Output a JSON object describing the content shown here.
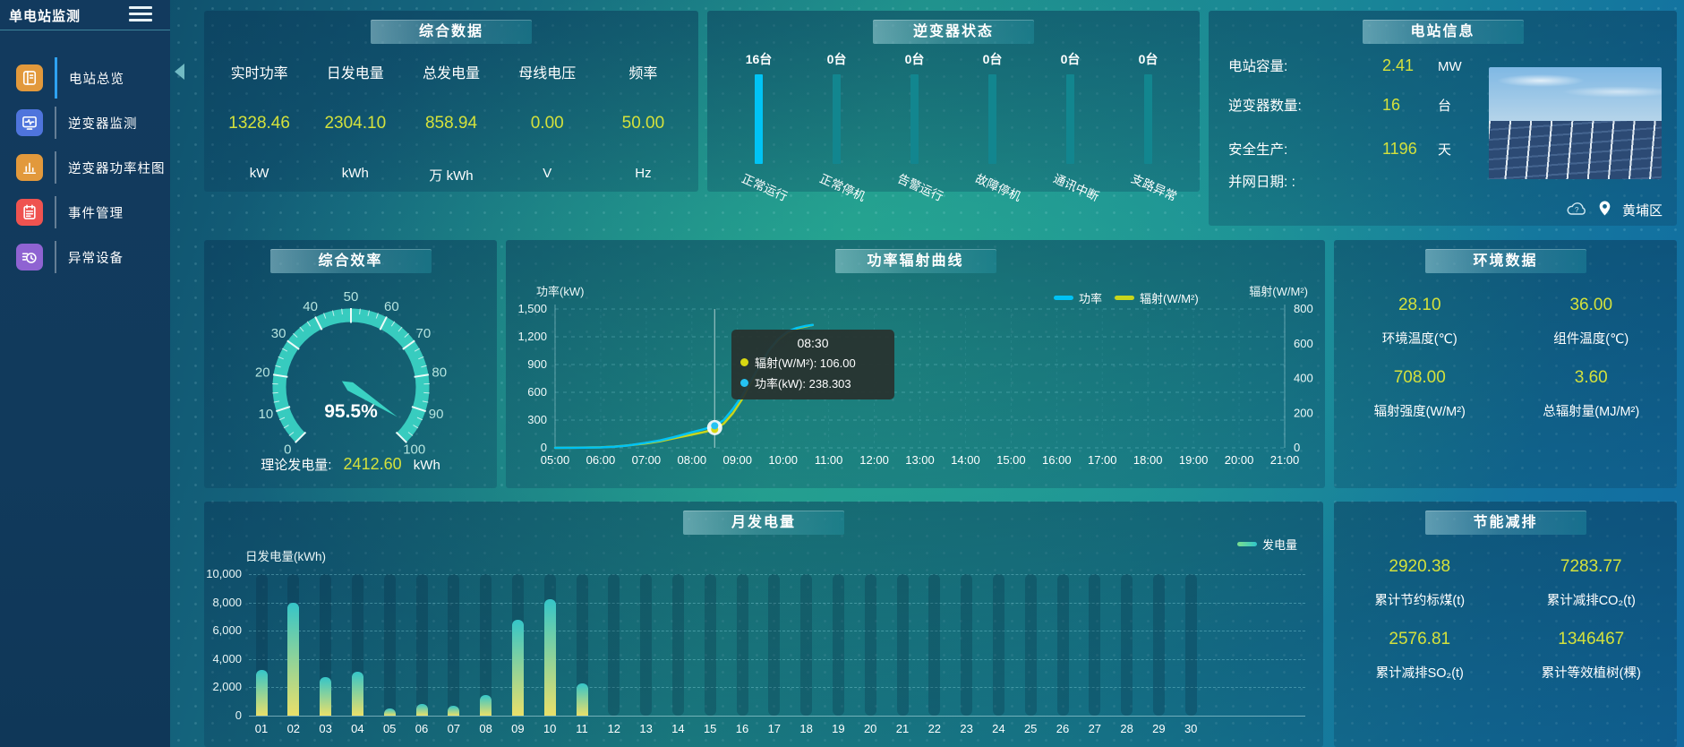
{
  "app": {
    "title": "单电站监测"
  },
  "sidebar": {
    "items": [
      {
        "key": "overview",
        "label": "电站总览",
        "icon": "station-overview-icon",
        "color": "#e2993c",
        "active": true
      },
      {
        "key": "inverter-monitor",
        "label": "逆变器监测",
        "icon": "inverter-monitor-icon",
        "color": "#4f74dc",
        "active": false
      },
      {
        "key": "inverter-power-chart",
        "label": "逆变器功率柱图",
        "icon": "inverter-power-bar-icon",
        "color": "#e2993c",
        "active": false
      },
      {
        "key": "event-management",
        "label": "事件管理",
        "icon": "event-management-icon",
        "color": "#ef5350",
        "active": false
      },
      {
        "key": "abnormal-device",
        "label": "异常设备",
        "icon": "abnormal-device-icon",
        "color": "#8f63d2",
        "active": false
      }
    ]
  },
  "panels": {
    "summary": {
      "title": "综合数据",
      "metrics": [
        {
          "label": "实时功率",
          "value": "1328.46",
          "unit": "kW"
        },
        {
          "label": "日发电量",
          "value": "2304.10",
          "unit": "kWh"
        },
        {
          "label": "总发电量",
          "value": "858.94",
          "unit": "万 kWh"
        },
        {
          "label": "母线电压",
          "value": "0.00",
          "unit": "V"
        },
        {
          "label": "频率",
          "value": "50.00",
          "unit": "Hz"
        }
      ]
    },
    "inverter_status": {
      "title": "逆变器状态"
    },
    "station_info": {
      "title": "电站信息",
      "rows": [
        {
          "label": "电站容量:",
          "value": "2.41",
          "unit": "MW"
        },
        {
          "label": "逆变器数量:",
          "value": "16",
          "unit": "台"
        },
        {
          "label": "安全生产:",
          "value": "1196",
          "unit": "天"
        },
        {
          "label": "并网日期: :",
          "value": "",
          "unit": ""
        }
      ],
      "location": "黄埔区"
    },
    "efficiency": {
      "title": "综合效率",
      "theory_label": "理论发电量:",
      "theory_value": "2412.60",
      "theory_unit": "kWh"
    },
    "power_curve": {
      "title": "功率辐射曲线"
    },
    "environment": {
      "title": "环境数据",
      "metrics": [
        {
          "value": "28.10",
          "label": "环境温度(℃)"
        },
        {
          "value": "36.00",
          "label": "组件温度(℃)"
        },
        {
          "value": "708.00",
          "label": "辐射强度(W/M²)"
        },
        {
          "value": "3.60",
          "label": "总辐射量(MJ/M²)"
        }
      ]
    },
    "monthly": {
      "title": "月发电量"
    },
    "saving": {
      "title": "节能减排",
      "metrics": [
        {
          "value": "2920.38",
          "label": "累计节约标煤(t)"
        },
        {
          "value": "7283.77",
          "label": "累计减排CO₂(t)"
        },
        {
          "value": "2576.81",
          "label": "累计减排SO₂(t)"
        },
        {
          "value": "1346467",
          "label": "累计等效植树(棵)"
        }
      ]
    }
  },
  "chart_data": [
    {
      "id": "inverter_status",
      "type": "bar",
      "title": "逆变器状态",
      "categories": [
        "正常运行",
        "正常停机",
        "告警运行",
        "故障停机",
        "通讯中断",
        "支路异常"
      ],
      "values": [
        16,
        0,
        0,
        0,
        0,
        0
      ],
      "value_labels": [
        "16台",
        "0台",
        "0台",
        "0台",
        "0台",
        "0台"
      ],
      "highlight_color": "#00c4f5",
      "bar_color": "#12868f"
    },
    {
      "id": "efficiency_gauge",
      "type": "gauge",
      "title": "综合效率",
      "value": 95.5,
      "label": "95.5%",
      "min": 0,
      "max": 100,
      "tick_labels": [
        "0",
        "10",
        "20",
        "30",
        "40",
        "50",
        "60",
        "70",
        "80",
        "90",
        "100"
      ],
      "color": "#3ad2c3"
    },
    {
      "id": "power_radiation",
      "type": "line",
      "title": "功率辐射曲线",
      "x_ticks": [
        "05:00",
        "06:00",
        "07:00",
        "08:00",
        "09:00",
        "10:00",
        "11:00",
        "12:00",
        "13:00",
        "14:00",
        "15:00",
        "16:00",
        "17:00",
        "18:00",
        "19:00",
        "20:00",
        "21:00"
      ],
      "axis_left_name": "功率(kW)",
      "axis_right_name": "辐射(W/M²)",
      "yticks_left": [
        "1,500",
        "1,200",
        "900",
        "600",
        "300",
        "0"
      ],
      "yticks_right": [
        "800",
        "600",
        "400",
        "200",
        "0"
      ],
      "ylim_left": [
        0,
        1500
      ],
      "ylim_right": [
        0,
        800
      ],
      "legend": [
        {
          "name": "功率",
          "color": "#00c2f4"
        },
        {
          "name": "辐射(W/M²)",
          "color": "#c8d61c"
        }
      ],
      "series": [
        {
          "name": "辐射(W/M²)",
          "axis": "right",
          "color": "#c8d61c",
          "points": [
            [
              5,
              0
            ],
            [
              5.5,
              1
            ],
            [
              6,
              3
            ],
            [
              6.3,
              7
            ],
            [
              6.6,
              14
            ],
            [
              7,
              26
            ],
            [
              7.3,
              38
            ],
            [
              7.6,
              55
            ],
            [
              8,
              76
            ],
            [
              8.25,
              90
            ],
            [
              8.5,
              106
            ],
            [
              8.7,
              140
            ],
            [
              8.9,
              200
            ],
            [
              9.1,
              280
            ],
            [
              9.3,
              380
            ],
            [
              9.5,
              480
            ],
            [
              9.7,
              565
            ],
            [
              9.9,
              625
            ],
            [
              10.1,
              665
            ],
            [
              10.3,
              688
            ],
            [
              10.5,
              700
            ],
            [
              10.65,
              708
            ]
          ]
        },
        {
          "name": "功率",
          "axis": "left",
          "color": "#00c2f4",
          "points": [
            [
              5,
              0
            ],
            [
              5.5,
              1
            ],
            [
              6,
              5
            ],
            [
              6.3,
              12
            ],
            [
              6.6,
              25
            ],
            [
              7,
              55
            ],
            [
              7.3,
              80
            ],
            [
              7.6,
              115
            ],
            [
              8,
              168
            ],
            [
              8.25,
              200
            ],
            [
              8.5,
              238.3
            ],
            [
              8.7,
              300
            ],
            [
              8.9,
              420
            ],
            [
              9.1,
              560
            ],
            [
              9.3,
              730
            ],
            [
              9.5,
              900
            ],
            [
              9.7,
              1060
            ],
            [
              9.9,
              1180
            ],
            [
              10.1,
              1255
            ],
            [
              10.3,
              1295
            ],
            [
              10.5,
              1318
            ],
            [
              10.65,
              1328
            ]
          ]
        }
      ],
      "tooltip": {
        "time": "08:30",
        "x": 8.5,
        "rows": [
          {
            "name": "辐射(W/M²):",
            "value": "106.00",
            "color": "#d8d812"
          },
          {
            "name": "功率(kW):",
            "value": "238.303",
            "color": "#25c2f2"
          }
        ]
      }
    },
    {
      "id": "monthly_generation",
      "type": "bar",
      "title": "月发电量",
      "ylabel": "日发电量(kWh)",
      "legend": "发电量",
      "categories": [
        "01",
        "02",
        "03",
        "04",
        "05",
        "06",
        "07",
        "08",
        "09",
        "10",
        "11",
        "12",
        "13",
        "14",
        "15",
        "16",
        "17",
        "18",
        "19",
        "20",
        "21",
        "22",
        "23",
        "24",
        "25",
        "26",
        "27",
        "28",
        "29",
        "30"
      ],
      "values": [
        3200,
        8000,
        2700,
        3100,
        500,
        800,
        700,
        1450,
        6800,
        8200,
        2280,
        0,
        0,
        0,
        0,
        0,
        0,
        0,
        0,
        0,
        0,
        0,
        0,
        0,
        0,
        0,
        0,
        0,
        0,
        0
      ],
      "yticks": [
        "10,000",
        "8,000",
        "6,000",
        "4,000",
        "2,000",
        "0"
      ],
      "ylim": [
        0,
        10000
      ],
      "bar_gradient": [
        "#e9e06a",
        "#35c5c8"
      ]
    }
  ],
  "colors": {
    "value_text": "#d4e13c",
    "active_menu_bar": "#2ea2f2",
    "gauge": "#3ad2c3",
    "inverter_highlight": "#00c4f5",
    "inverter_normal": "#12868f"
  }
}
